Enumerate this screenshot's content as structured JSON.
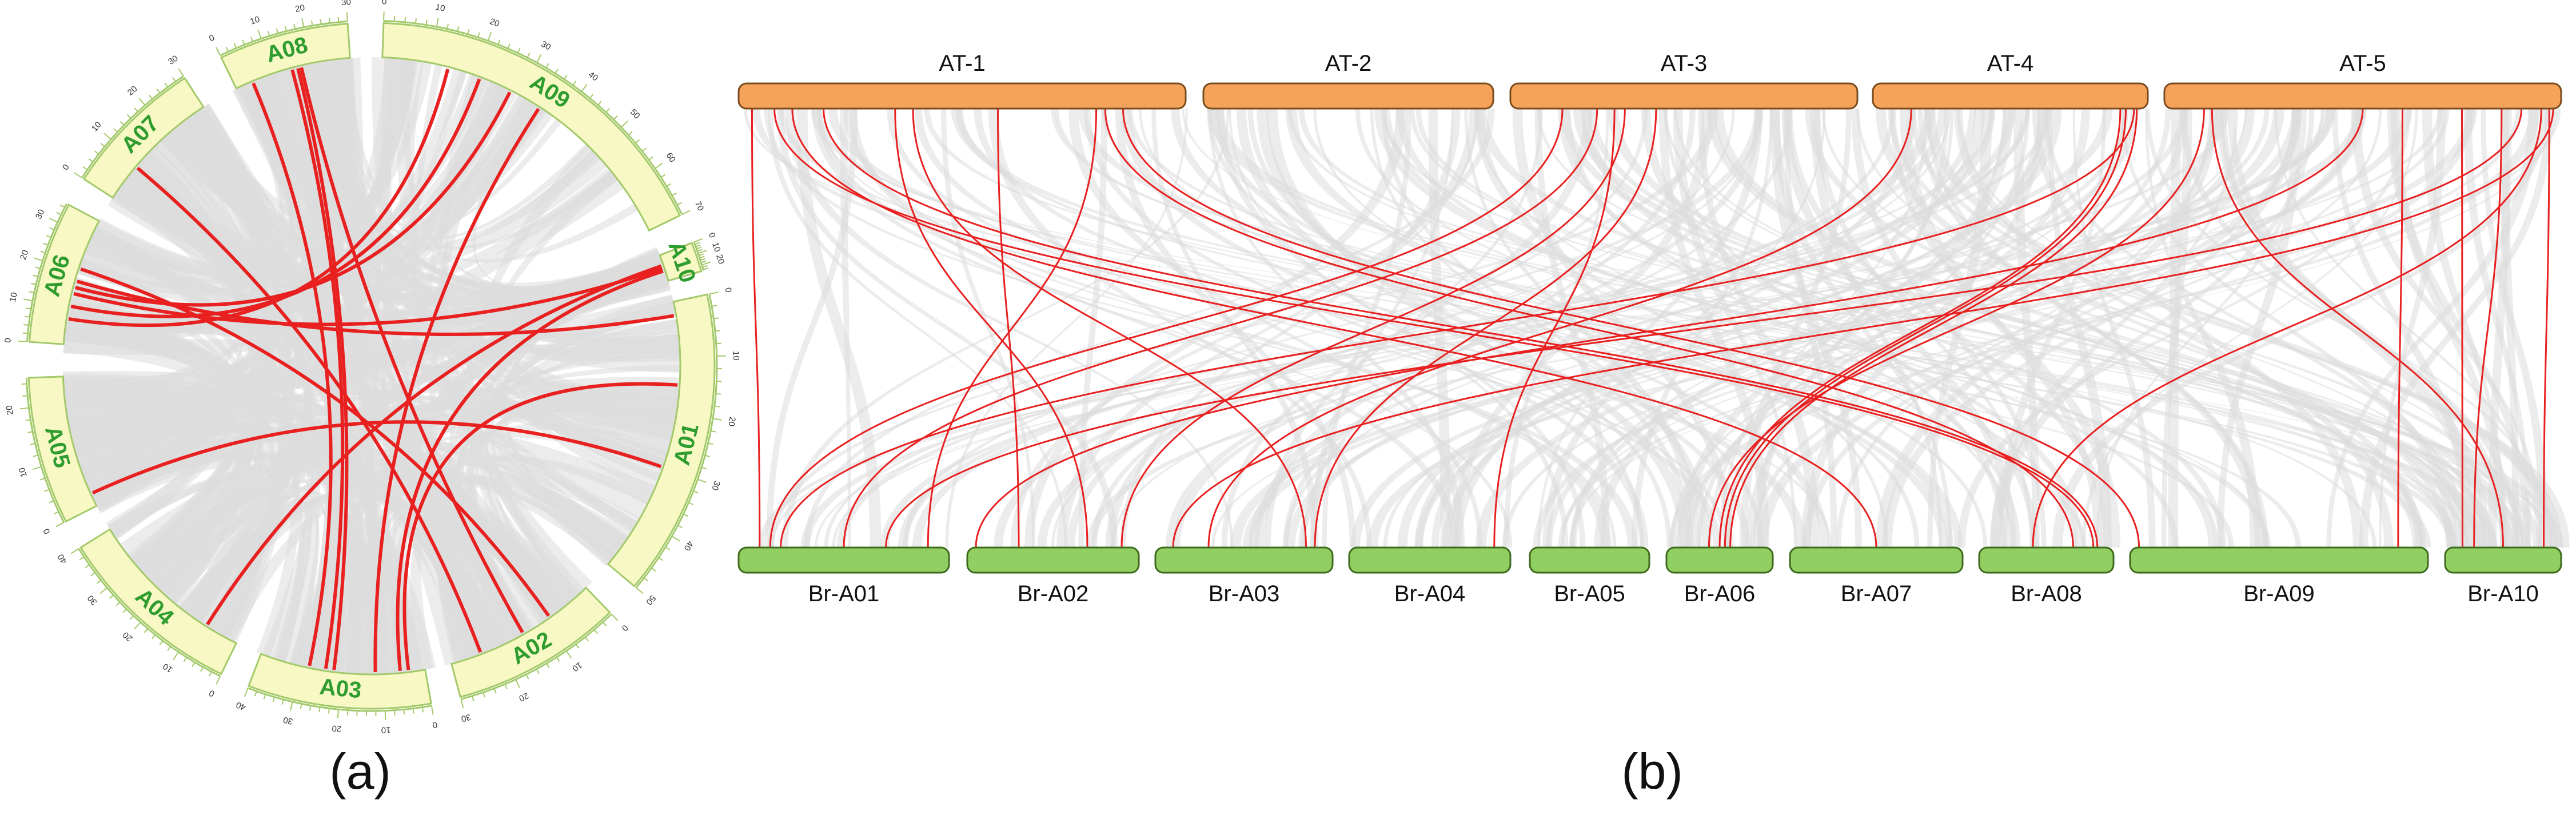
{
  "panel_a": {
    "label": "(a)",
    "chromosomes": [
      {
        "name": "A01",
        "start": 80,
        "end": 124,
        "length": 50,
        "tick_step": 10
      },
      {
        "name": "A02",
        "start": 130,
        "end": 156,
        "length": 30,
        "tick_step": 10
      },
      {
        "name": "A03",
        "start": 162,
        "end": 195,
        "length": 40,
        "tick_step": 10
      },
      {
        "name": "A04",
        "start": 201,
        "end": 234,
        "length": 40,
        "tick_step": 10
      },
      {
        "name": "A05",
        "start": 240,
        "end": 262,
        "length": 25,
        "tick_step": 10
      },
      {
        "name": "A06",
        "start": 268,
        "end": 295,
        "length": 35,
        "tick_step": 10
      },
      {
        "name": "A07",
        "start": 301,
        "end": 325,
        "length": 30,
        "tick_step": 10
      },
      {
        "name": "A08",
        "start": 331,
        "end": 356,
        "length": 30,
        "tick_step": 10
      },
      {
        "name": "A09",
        "start": 2,
        "end": 66,
        "length": 70,
        "tick_step": 10
      },
      {
        "name": "A10",
        "start": 72,
        "end": 74,
        "length": 25,
        "tick_step": 10
      }
    ],
    "links": [
      [
        "A08",
        0.55,
        "A03",
        0.55
      ],
      [
        "A08",
        0.5,
        "A03",
        0.6
      ],
      [
        "A08",
        0.58,
        "A02",
        0.5
      ],
      [
        "A08",
        0.15,
        "A03",
        0.7
      ],
      [
        "A07",
        0.3,
        "A02",
        0.8
      ],
      [
        "A09",
        0.2,
        "A06",
        0.2
      ],
      [
        "A09",
        0.3,
        "A06",
        0.3
      ],
      [
        "A09",
        0.5,
        "A03",
        0.3
      ],
      [
        "A06",
        0.4,
        "A10",
        0.5
      ],
      [
        "A06",
        0.5,
        "A01",
        0.05
      ],
      [
        "A06",
        0.6,
        "A02",
        0.3
      ],
      [
        "A05",
        0.1,
        "A01",
        0.6
      ],
      [
        "A10",
        0.6,
        "A03",
        0.15
      ],
      [
        "A10",
        0.4,
        "A04",
        0.2
      ],
      [
        "A01",
        0.3,
        "A03",
        0.1
      ],
      [
        "A09",
        0.4,
        "A06",
        0.45
      ]
    ]
  },
  "panel_b": {
    "label": "(b)",
    "at_chromosomes": [
      {
        "name": "AT-1"
      },
      {
        "name": "AT-2"
      },
      {
        "name": "AT-3"
      },
      {
        "name": "AT-4"
      },
      {
        "name": "AT-5"
      }
    ],
    "br_chromosomes": [
      {
        "name": "Br-A01"
      },
      {
        "name": "Br-A02"
      },
      {
        "name": "Br-A03"
      },
      {
        "name": "Br-A04"
      },
      {
        "name": "Br-A05"
      },
      {
        "name": "Br-A06"
      },
      {
        "name": "Br-A07"
      },
      {
        "name": "Br-A08"
      },
      {
        "name": "Br-A09"
      },
      {
        "name": "Br-A10"
      }
    ],
    "links": [
      [
        "AT-1",
        0.03,
        "Br-A01",
        0.1
      ],
      [
        "AT-1",
        0.08,
        "Br-A08",
        0.85
      ],
      [
        "AT-1",
        0.19,
        "Br-A08",
        0.88
      ],
      [
        "AT-1",
        0.39,
        "Br-A03",
        0.85
      ],
      [
        "AT-1",
        0.86,
        "Br-A09",
        0.03
      ],
      [
        "AT-1",
        0.82,
        "Br-A08",
        0.7
      ],
      [
        "AT-1",
        0.12,
        "Br-A07",
        0.5
      ],
      [
        "AT-1",
        0.58,
        "Br-A02",
        0.3
      ],
      [
        "AT-1",
        0.8,
        "Br-A01",
        0.9
      ],
      [
        "AT-3",
        0.15,
        "Br-A01",
        0.15
      ],
      [
        "AT-3",
        0.25,
        "Br-A01",
        0.5
      ],
      [
        "AT-3",
        0.33,
        "Br-A02",
        0.9
      ],
      [
        "AT-3",
        0.3,
        "Br-A04",
        0.9
      ],
      [
        "AT-3",
        0.42,
        "Br-A03",
        0.9
      ],
      [
        "AT-4",
        0.14,
        "Br-A03",
        0.3
      ],
      [
        "AT-4",
        0.95,
        "Br-A01",
        0.2
      ],
      [
        "AT-4",
        0.9,
        "Br-A06",
        0.5
      ],
      [
        "AT-4",
        0.92,
        "Br-A06",
        0.55
      ],
      [
        "AT-4",
        0.96,
        "Br-A06",
        0.6
      ],
      [
        "AT-5",
        0.1,
        "Br-A06",
        0.4
      ],
      [
        "AT-5",
        0.12,
        "Br-A10",
        0.5
      ],
      [
        "AT-5",
        0.75,
        "Br-A10",
        0.15
      ],
      [
        "AT-5",
        0.85,
        "Br-A10",
        0.25
      ],
      [
        "AT-5",
        0.95,
        "Br-A08",
        0.4
      ],
      [
        "AT-5",
        0.98,
        "Br-A03",
        0.1
      ],
      [
        "AT-5",
        0.9,
        "Br-A01",
        0.7
      ],
      [
        "AT-5",
        0.97,
        "Br-A10",
        0.85
      ],
      [
        "AT-5",
        0.6,
        "Br-A09",
        0.9
      ],
      [
        "AT-5",
        0.5,
        "Br-A02",
        0.05
      ],
      [
        "AT-1",
        0.35,
        "Br-A02",
        0.7
      ]
    ]
  },
  "colors": {
    "red_link": "#e82020",
    "gray_link": "#dcdcdc",
    "at_fill": "#f5a35a",
    "at_stroke": "#7a4b1c",
    "br_fill": "#92cf62",
    "br_stroke": "#3d6a1d",
    "ideogram_fill": "#f7f8c3",
    "ideogram_stroke": "#a3c96a",
    "chr_label": "#2f9c2f"
  }
}
